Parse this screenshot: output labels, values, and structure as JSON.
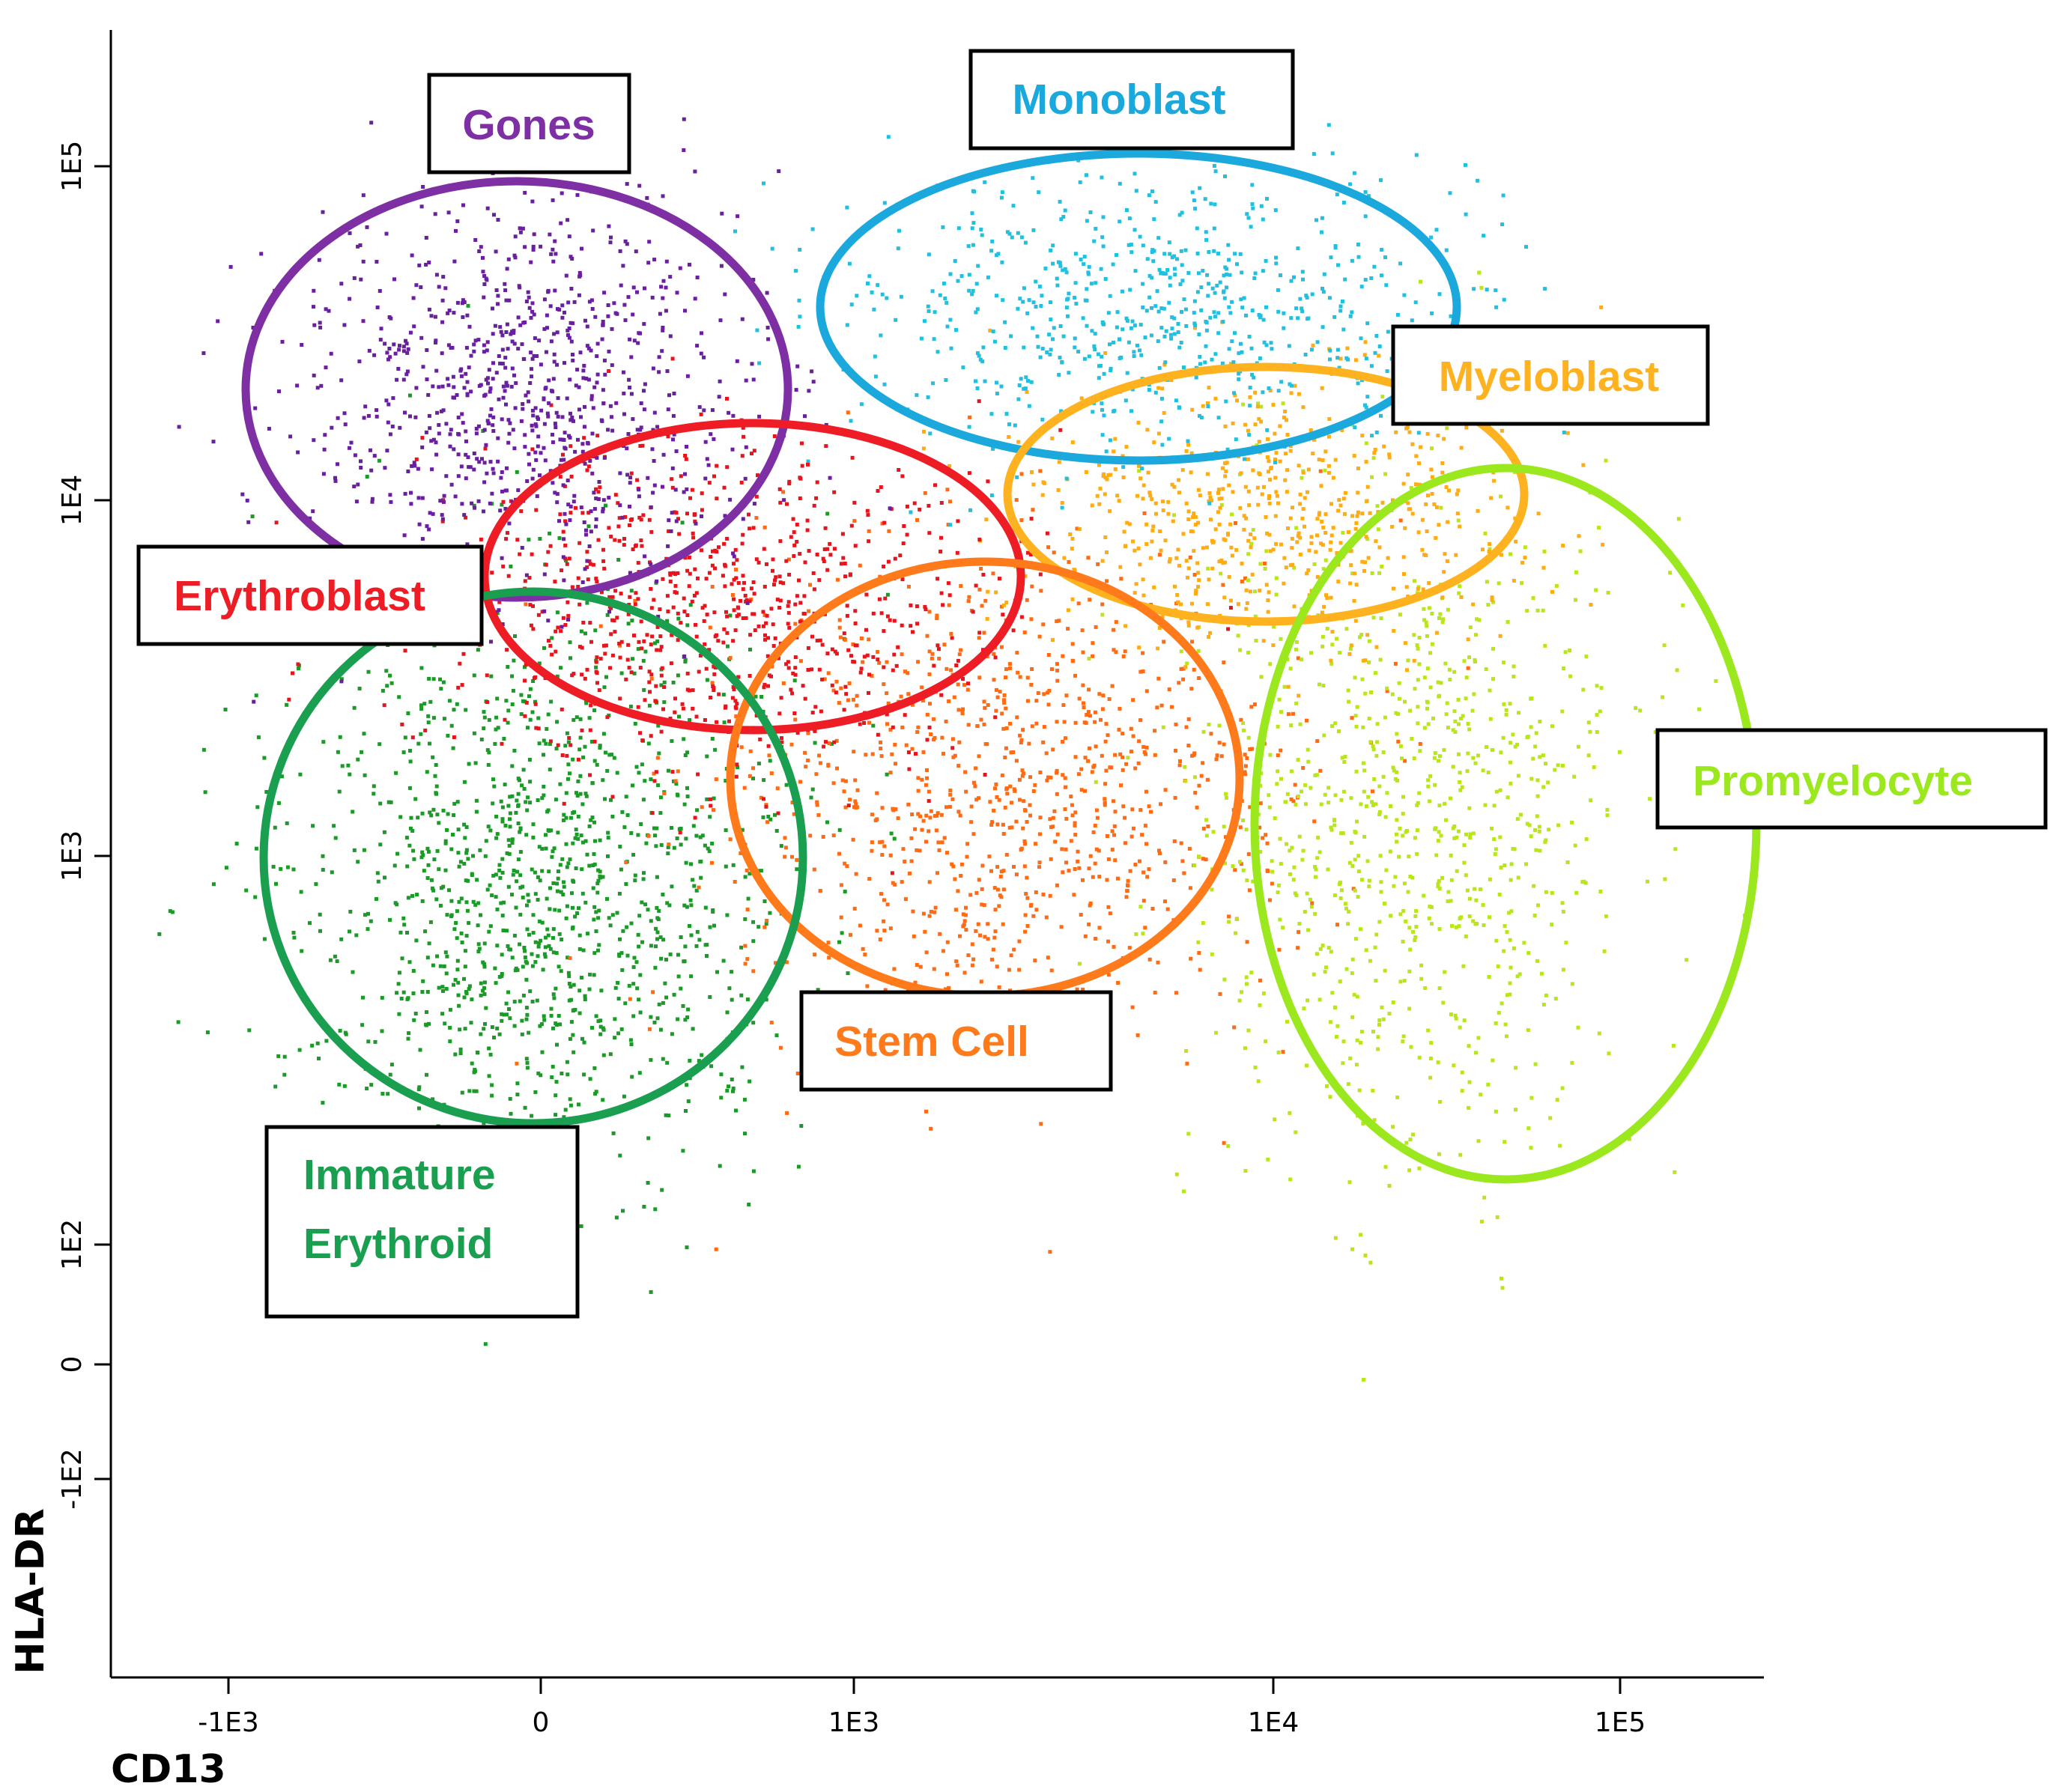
{
  "chart_data": {
    "type": "scatter",
    "title": "",
    "xlabel": "CD13",
    "ylabel": "HLA-DR",
    "x_scale": "biexponential",
    "y_scale": "biexponential",
    "x_ticks": [
      "-1E3",
      "0",
      "1E3",
      "1E4",
      "1E5"
    ],
    "y_ticks": [
      "1E5",
      "1E4",
      "1E3",
      "1E2",
      "0",
      "-1E2"
    ],
    "grid": false,
    "legend": "none",
    "gates": [
      {
        "name": "Gones",
        "color": "#7d2fa3",
        "center": [
          0,
          18000
        ],
        "dot_color": "#6a1fa0"
      },
      {
        "name": "Monoblast",
        "color": "#1ba8dc",
        "center": [
          4500,
          40000
        ],
        "dot_color": "#22c0e0"
      },
      {
        "name": "Myeloblast",
        "color": "#ffb21f",
        "center": [
          10000,
          11000
        ],
        "dot_color": "#ffab12"
      },
      {
        "name": "Erythroblast",
        "color": "#ee1c24",
        "center": [
          1100,
          6000
        ],
        "dot_color": "#e8141c"
      },
      {
        "name": "Stem Cell",
        "color": "#ff7a1a",
        "center": [
          3000,
          1700
        ],
        "dot_color": "#ff6a12"
      },
      {
        "name": "Immature Erythroid",
        "color": "#1a9e4f",
        "center": [
          20,
          900
        ],
        "dot_color": "#1a9a26"
      },
      {
        "name": "Promyelocyte",
        "color": "#9be81e",
        "center": [
          50000,
          1300
        ],
        "dot_color": "#b8e61a"
      }
    ],
    "label_text": {
      "gones": "Gones",
      "monoblast": "Monoblast",
      "myeloblast": "Myeloblast",
      "erythroblast": "Erythroblast",
      "stem_cell": "Stem Cell",
      "immature_line1": "Immature",
      "immature_line2": "Erythroid",
      "promyelocyte": "Promyelocyte"
    }
  }
}
